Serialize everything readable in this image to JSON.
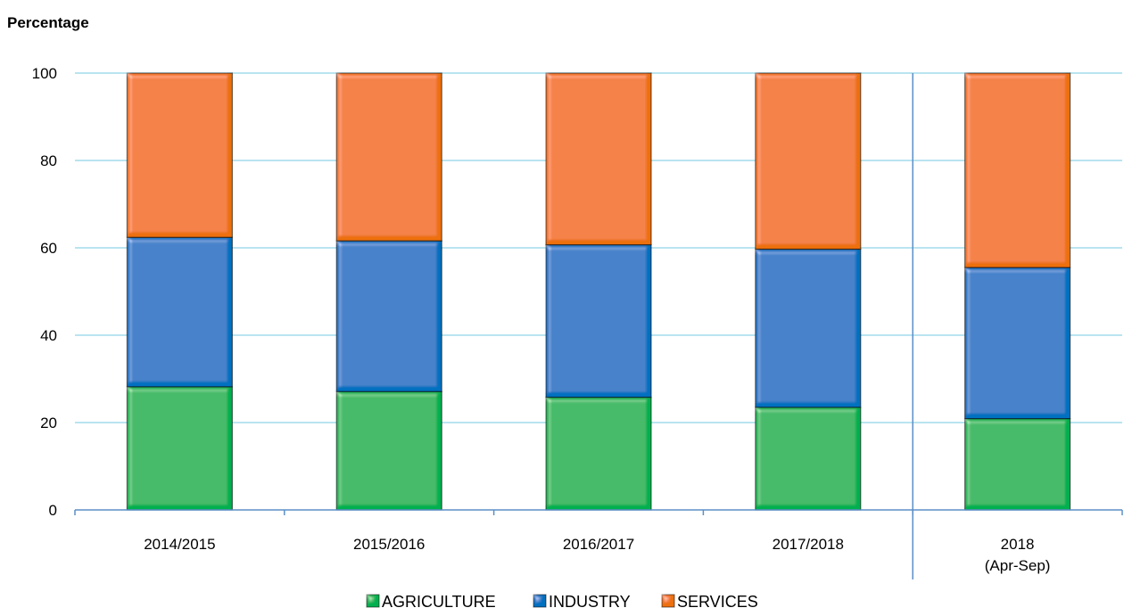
{
  "chart_data": {
    "type": "bar",
    "stacked": true,
    "ylabel": "Percentage",
    "ylim": [
      0,
      100
    ],
    "yticks": [
      0,
      20,
      40,
      60,
      80,
      100
    ],
    "grid": true,
    "legend_position": "bottom",
    "categories": [
      [
        "2014/2015"
      ],
      [
        "2015/2016"
      ],
      [
        "2016/2017"
      ],
      [
        "2017/2018"
      ],
      [
        "2018",
        "(Apr-Sep)"
      ]
    ],
    "separator_before_category": 4,
    "series": [
      {
        "name": "AGRICULTURE",
        "color": "#00b050",
        "values": [
          28.2,
          27.1,
          25.8,
          23.5,
          20.9
        ]
      },
      {
        "name": "INDUSTRY",
        "color": "#0070c0",
        "values": [
          34.2,
          34.5,
          34.9,
          36.2,
          34.6
        ]
      },
      {
        "name": "SERVICES",
        "color": "#ed7010",
        "values": [
          37.6,
          38.4,
          39.3,
          40.3,
          44.5
        ]
      }
    ]
  }
}
